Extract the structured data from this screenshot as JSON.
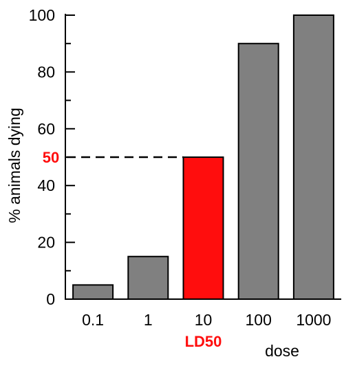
{
  "colors": {
    "bar": "#808080",
    "highlight": "#ff0d0d",
    "axis": "#000000",
    "reference_line": "#000000"
  },
  "chart_data": {
    "type": "bar",
    "title": "",
    "xlabel": "dose",
    "ylabel": "% animals dying",
    "categories": [
      "0.1",
      "1",
      "10",
      "100",
      "1000"
    ],
    "values": [
      5,
      15,
      50,
      90,
      100
    ],
    "ylim": [
      0,
      100
    ],
    "y_major_ticks": [
      0,
      20,
      40,
      60,
      80,
      100
    ],
    "y_minor_ticks": [
      10,
      30,
      50,
      70,
      90
    ],
    "grid": false,
    "legend": "none",
    "highlight_index": 2,
    "annotations": {
      "reference_value": 50,
      "reference_value_label": "50",
      "highlight_label": "LD50",
      "reference_line_style": "dashed"
    }
  }
}
